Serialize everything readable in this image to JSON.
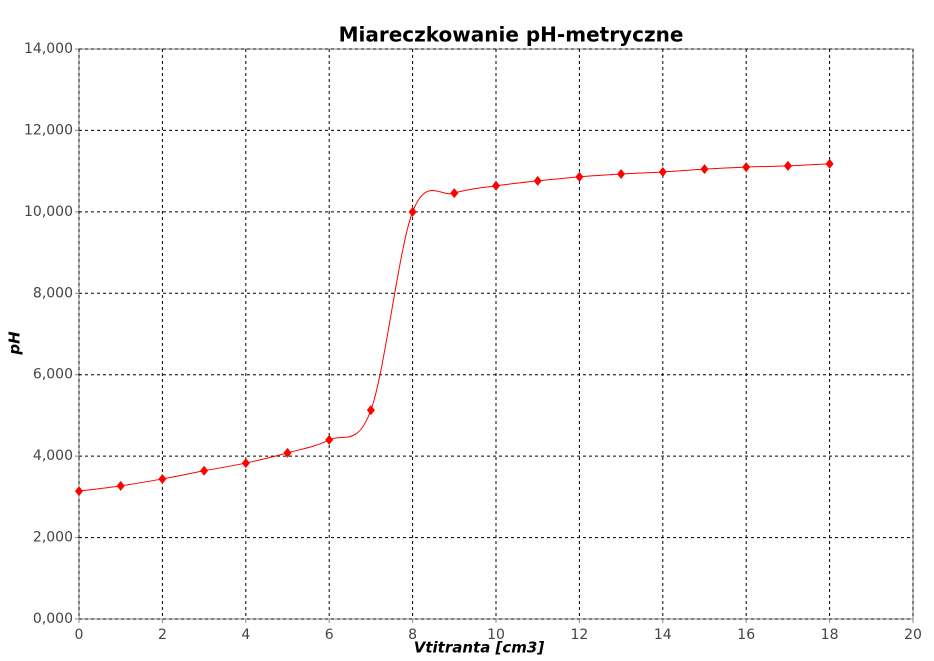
{
  "chart_data": {
    "type": "line",
    "title": "Miareczkowanie pH-metryczne",
    "x_label": "Vtitranta [cm3]",
    "y_label": "pH",
    "x": [
      0,
      1,
      2,
      3,
      4,
      5,
      6,
      7,
      8,
      9,
      10,
      11,
      12,
      13,
      14,
      15,
      16,
      17,
      18
    ],
    "values": [
      3.14,
      3.27,
      3.44,
      3.64,
      3.83,
      4.08,
      4.4,
      5.13,
      10.0,
      10.46,
      10.64,
      10.76,
      10.86,
      10.93,
      10.98,
      11.05,
      11.1,
      11.13,
      11.18
    ],
    "color": "#ff0000",
    "markers": "diamond",
    "smooth": true,
    "xlim": [
      0,
      20
    ],
    "xticks": [
      0,
      2,
      4,
      6,
      8,
      10,
      12,
      14,
      16,
      18,
      20
    ],
    "ylim": [
      0,
      14
    ],
    "yticks": [
      {
        "value": 0,
        "label": "0,000"
      },
      {
        "value": 2,
        "label": "2,000"
      },
      {
        "value": 4,
        "label": "4,000"
      },
      {
        "value": 6,
        "label": "6,000"
      },
      {
        "value": 8,
        "label": "8,000"
      },
      {
        "value": 10,
        "label": "10,000"
      },
      {
        "value": 12,
        "label": "12,000"
      },
      {
        "value": 14,
        "label": "14,000"
      }
    ],
    "grid": true
  }
}
